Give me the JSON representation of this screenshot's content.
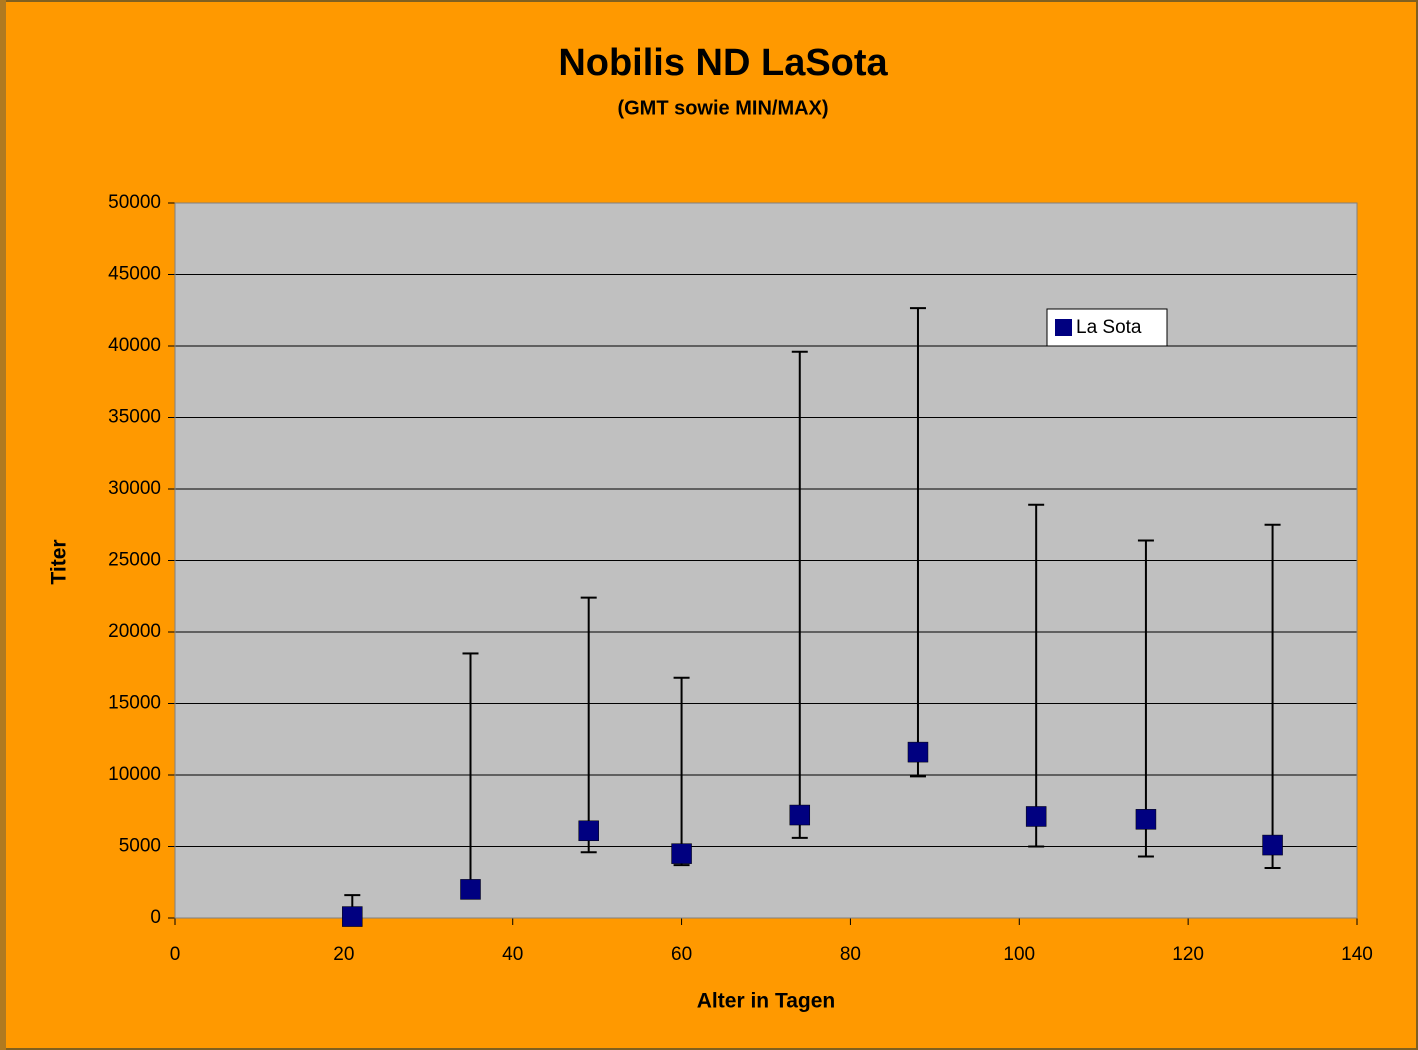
{
  "chart_data": {
    "type": "scatter",
    "title": "Nobilis ND LaSota",
    "subtitle": "(GMT sowie MIN/MAX)",
    "x_label": "Alter in Tagen",
    "y_label": "Titer",
    "x": [
      21,
      35,
      49,
      60,
      74,
      88,
      102,
      115,
      130
    ],
    "series": [
      {
        "name": "La Sota",
        "color": "#000080",
        "values": [
          100,
          2000,
          6100,
          4500,
          7200,
          11600,
          7100,
          6900,
          5100
        ],
        "low": [
          0,
          1500,
          4600,
          3700,
          5600,
          9900,
          5000,
          4300,
          3500
        ],
        "high": [
          1600,
          18500,
          22400,
          16800,
          39600,
          42650,
          28900,
          26400,
          27500
        ]
      }
    ],
    "xlim": [
      0,
      140
    ],
    "xticks": [
      0,
      20,
      40,
      60,
      80,
      100,
      120,
      140
    ],
    "ylim": [
      0,
      50000
    ],
    "yticks": [
      0,
      5000,
      10000,
      15000,
      20000,
      25000,
      30000,
      35000,
      40000,
      45000,
      50000
    ],
    "grid": true,
    "legend": "upper right"
  }
}
